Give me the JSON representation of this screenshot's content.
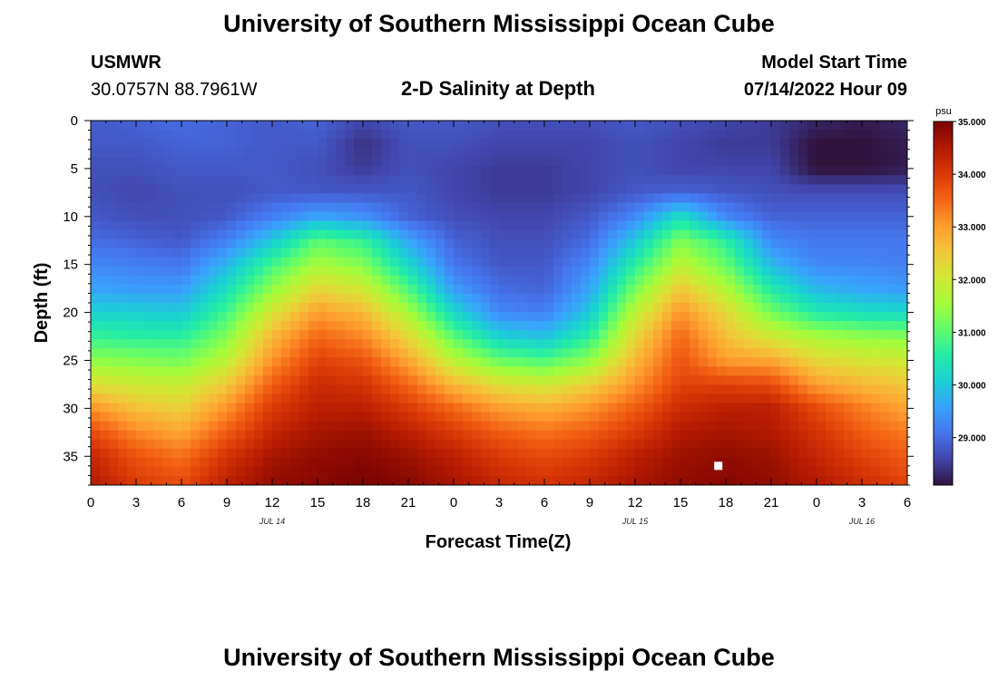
{
  "page": {
    "title": "University of Southern Mississippi Ocean Cube",
    "footer_title": "University of Southern Mississippi Ocean Cube"
  },
  "station": {
    "id": "USMWR",
    "coords": "30.0757N  88.7961W"
  },
  "model": {
    "label": "Model Start Time",
    "value": "07/14/2022 Hour 09"
  },
  "chart_data": {
    "type": "heatmap",
    "title": "2-D Salinity at Depth",
    "xlabel": "Forecast Time(Z)",
    "ylabel": "Depth (ft)",
    "colorbar_unit": "psu",
    "x_ticks": [
      "0",
      "3",
      "6",
      "9",
      "12",
      "15",
      "18",
      "21",
      "0",
      "3",
      "6",
      "9",
      "12",
      "15",
      "18",
      "21",
      "0",
      "3",
      "6"
    ],
    "date_labels": [
      {
        "label": "JUL 14",
        "at_hour": 12
      },
      {
        "label": "JUL 15",
        "at_hour": 36
      },
      {
        "label": "JUL 16",
        "at_hour": 51
      }
    ],
    "xlim": [
      0,
      54
    ],
    "y_ticks": [
      0,
      5,
      10,
      15,
      20,
      25,
      30,
      35
    ],
    "ylim": [
      0,
      38
    ],
    "y_inverted": true,
    "color_range": [
      28.1,
      35.0
    ],
    "colorbar_ticks": [
      "35.000",
      "34.000",
      "33.000",
      "32.000",
      "31.000",
      "30.000",
      "29.000"
    ],
    "colorbar_tick_values": [
      35,
      34,
      33,
      32,
      31,
      30,
      29
    ],
    "colormap": [
      "#30123b",
      "#4145ab",
      "#4675ed",
      "#39a2fc",
      "#1bcfd4",
      "#24eca6",
      "#61fc6c",
      "#a4fc3b",
      "#d1e834",
      "#f3c63a",
      "#fe9b2d",
      "#f36315",
      "#d93806",
      "#b11901",
      "#7a0402"
    ],
    "time_hours": [
      0,
      3,
      6,
      9,
      12,
      15,
      18,
      21,
      24,
      27,
      30,
      33,
      36,
      39,
      42,
      45,
      48,
      51,
      54
    ],
    "depths_ft": [
      0,
      2.5,
      5,
      7.5,
      10,
      12.5,
      15,
      17.5,
      20,
      22.5,
      25,
      27.5,
      30,
      32.5,
      35,
      38
    ],
    "salinity_psu": [
      [
        28.8,
        28.9,
        29.0,
        28.9,
        28.8,
        28.9,
        28.6,
        28.8,
        28.8,
        28.7,
        28.7,
        28.7,
        28.8,
        28.7,
        28.6,
        28.5,
        28.3,
        28.2,
        28.3
      ],
      [
        28.8,
        28.8,
        28.9,
        28.9,
        28.8,
        28.8,
        28.4,
        28.7,
        28.7,
        28.6,
        28.6,
        28.6,
        28.7,
        28.6,
        28.5,
        28.5,
        28.1,
        28.1,
        28.2
      ],
      [
        28.7,
        28.7,
        28.8,
        28.8,
        28.8,
        28.7,
        28.5,
        28.7,
        28.6,
        28.5,
        28.5,
        28.6,
        28.7,
        28.6,
        28.6,
        28.6,
        28.1,
        28.1,
        28.2
      ],
      [
        28.7,
        28.6,
        28.7,
        28.7,
        28.8,
        28.8,
        28.8,
        28.8,
        28.6,
        28.5,
        28.5,
        28.6,
        28.8,
        28.9,
        28.8,
        28.7,
        28.7,
        28.7,
        28.7
      ],
      [
        28.8,
        28.7,
        28.7,
        28.8,
        29.2,
        29.6,
        29.4,
        28.9,
        28.7,
        28.6,
        28.6,
        28.8,
        29.3,
        30.3,
        29.3,
        28.9,
        28.9,
        28.9,
        28.9
      ],
      [
        29.0,
        28.9,
        28.8,
        29.2,
        30.0,
        31.0,
        30.7,
        29.6,
        28.9,
        28.7,
        28.7,
        29.0,
        30.0,
        31.3,
        30.6,
        29.3,
        29.1,
        29.1,
        29.1
      ],
      [
        29.3,
        29.2,
        29.1,
        29.8,
        30.8,
        31.6,
        31.3,
        30.2,
        29.1,
        28.8,
        28.8,
        29.3,
        30.6,
        31.8,
        31.1,
        29.8,
        29.3,
        29.3,
        29.2
      ],
      [
        29.6,
        29.5,
        29.5,
        30.3,
        31.4,
        32.3,
        32.0,
        30.9,
        29.5,
        29.0,
        28.9,
        29.6,
        31.2,
        32.5,
        31.7,
        30.5,
        29.8,
        29.6,
        29.5
      ],
      [
        30.1,
        30.1,
        30.0,
        30.8,
        32.1,
        33.0,
        32.7,
        31.6,
        30.2,
        29.3,
        29.2,
        30.0,
        31.8,
        33.1,
        32.3,
        31.2,
        30.5,
        30.3,
        30.2
      ],
      [
        30.7,
        30.6,
        30.6,
        31.3,
        32.7,
        33.5,
        33.2,
        32.3,
        31.0,
        30.1,
        29.9,
        30.6,
        32.3,
        33.5,
        32.6,
        32.0,
        31.6,
        31.4,
        31.3
      ],
      [
        31.4,
        31.3,
        31.2,
        31.8,
        33.1,
        33.9,
        33.7,
        32.9,
        31.8,
        31.1,
        30.9,
        31.4,
        32.7,
        33.7,
        33.0,
        32.9,
        32.3,
        32.1,
        32.0
      ],
      [
        32.2,
        32.0,
        31.9,
        32.5,
        33.6,
        34.2,
        34.1,
        33.5,
        32.7,
        32.2,
        32.0,
        32.4,
        33.1,
        33.9,
        33.9,
        33.8,
        33.0,
        32.7,
        32.5
      ],
      [
        33.1,
        32.6,
        32.4,
        33.1,
        34.0,
        34.4,
        34.4,
        34.0,
        33.5,
        33.0,
        32.8,
        33.1,
        33.6,
        34.2,
        34.4,
        34.4,
        33.8,
        33.3,
        32.9
      ],
      [
        33.8,
        33.2,
        32.9,
        33.6,
        34.3,
        34.6,
        34.7,
        34.4,
        34.0,
        33.6,
        33.4,
        33.6,
        34.0,
        34.5,
        34.6,
        34.5,
        34.1,
        33.6,
        33.3
      ],
      [
        34.3,
        33.7,
        33.4,
        34.1,
        34.6,
        34.8,
        34.9,
        34.7,
        34.4,
        34.0,
        33.8,
        34.0,
        34.4,
        34.7,
        34.8,
        34.7,
        34.3,
        33.9,
        33.6
      ],
      [
        34.5,
        34.0,
        33.8,
        34.4,
        34.8,
        34.9,
        35.0,
        34.9,
        34.6,
        34.3,
        34.1,
        34.3,
        34.6,
        34.8,
        34.9,
        34.8,
        34.5,
        34.2,
        33.9
      ]
    ],
    "marker": {
      "hour": 41.5,
      "depth_ft": 36
    }
  }
}
